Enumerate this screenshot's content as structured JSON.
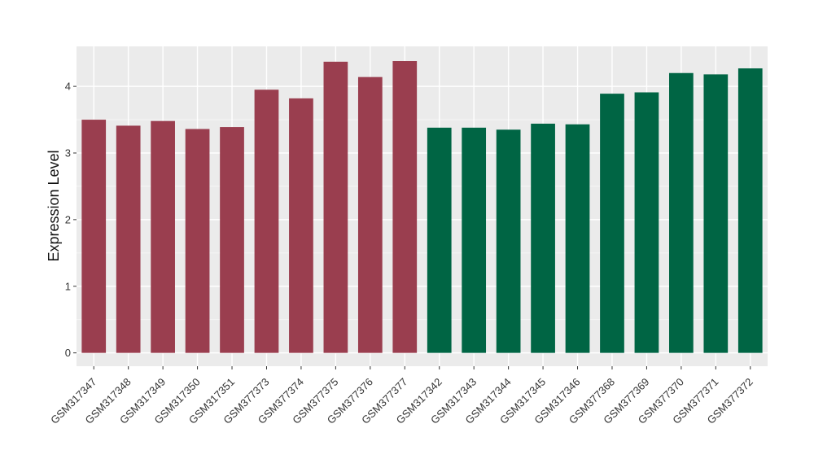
{
  "chart_data": {
    "type": "bar",
    "ylabel": "Expression Level",
    "xlabel": "",
    "ylim": [
      -0.2,
      4.6
    ],
    "yticks": [
      0,
      1,
      2,
      3,
      4
    ],
    "grid": true,
    "background": "#ebebeb",
    "grid_color": "#ffffff",
    "categories": [
      "GSM317347",
      "GSM317348",
      "GSM317349",
      "GSM317350",
      "GSM317351",
      "GSM377373",
      "GSM377374",
      "GSM377375",
      "GSM377376",
      "GSM377377",
      "GSM317342",
      "GSM317343",
      "GSM317344",
      "GSM317345",
      "GSM317346",
      "GSM377368",
      "GSM377369",
      "GSM377370",
      "GSM377371",
      "GSM377372"
    ],
    "values": [
      3.5,
      3.41,
      3.48,
      3.36,
      3.39,
      3.95,
      3.82,
      4.37,
      4.14,
      4.38,
      3.38,
      3.38,
      3.35,
      3.44,
      3.43,
      3.89,
      3.91,
      4.2,
      4.18,
      4.27
    ],
    "bar_colors": [
      "#9a3e4f",
      "#9a3e4f",
      "#9a3e4f",
      "#9a3e4f",
      "#9a3e4f",
      "#9a3e4f",
      "#9a3e4f",
      "#9a3e4f",
      "#9a3e4f",
      "#9a3e4f",
      "#006544",
      "#006544",
      "#006544",
      "#006544",
      "#006544",
      "#006544",
      "#006544",
      "#006544",
      "#006544",
      "#006544"
    ]
  }
}
